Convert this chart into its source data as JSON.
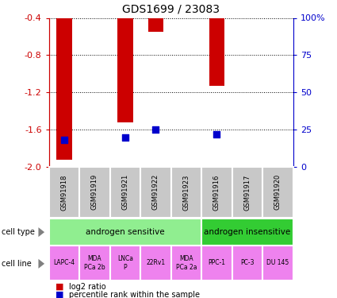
{
  "title": "GDS1699 / 23083",
  "samples": [
    "GSM91918",
    "GSM91919",
    "GSM91921",
    "GSM91922",
    "GSM91923",
    "GSM91916",
    "GSM91917",
    "GSM91920"
  ],
  "log2_ratio": [
    -1.92,
    0.0,
    -1.52,
    -0.55,
    0.0,
    -1.13,
    0.0,
    0.0
  ],
  "percentile_rank": [
    18,
    0,
    20,
    25,
    0,
    22,
    0,
    0
  ],
  "ylim_left": [
    -2.0,
    -0.4
  ],
  "ylim_right": [
    0,
    100
  ],
  "yticks_left": [
    -2.0,
    -1.6,
    -1.2,
    -0.8,
    -0.4
  ],
  "yticks_right": [
    0,
    25,
    50,
    75,
    100
  ],
  "cell_type_groups": [
    {
      "label": "androgen sensitive",
      "start": 0,
      "end": 5,
      "color": "#90EE90"
    },
    {
      "label": "androgen insensitive",
      "start": 5,
      "end": 8,
      "color": "#33CC33"
    }
  ],
  "cell_lines": [
    {
      "label": "LAPC-4",
      "col": 0
    },
    {
      "label": "MDA\nPCa 2b",
      "col": 1
    },
    {
      "label": "LNCa\nP",
      "col": 2
    },
    {
      "label": "22Rv1",
      "col": 3
    },
    {
      "label": "MDA\nPCa 2a",
      "col": 4
    },
    {
      "label": "PPC-1",
      "col": 5
    },
    {
      "label": "PC-3",
      "col": 6
    },
    {
      "label": "DU 145",
      "col": 7
    }
  ],
  "cell_line_color": "#EE82EE",
  "sample_bg_color": "#C8C8C8",
  "bar_color": "#CC0000",
  "dot_color": "#0000CC",
  "bar_width": 0.5,
  "dot_size": 30,
  "left_ylabel_color": "#CC0000",
  "right_ylabel_color": "#0000CC",
  "figsize": [
    4.25,
    3.75
  ],
  "dpi": 100
}
